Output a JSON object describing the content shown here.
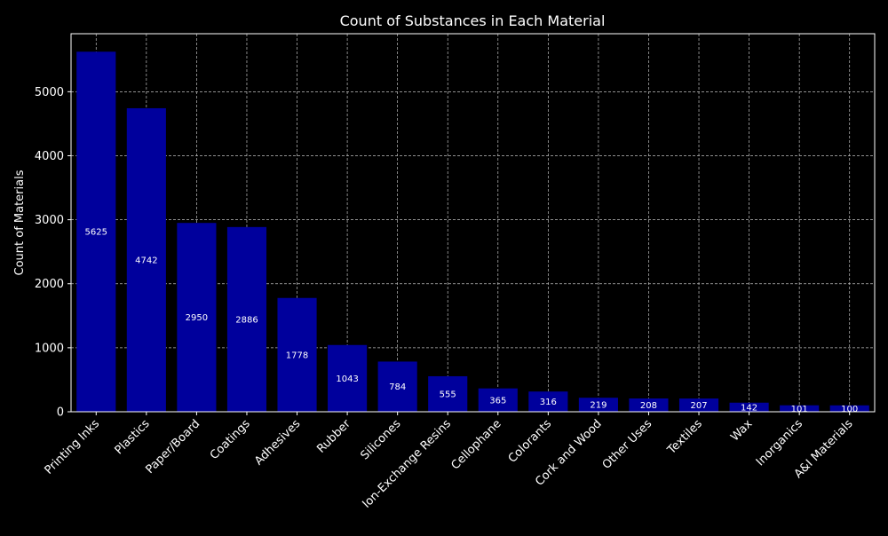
{
  "chart_data": {
    "type": "bar",
    "title": "Count of Substances in Each Material",
    "xlabel": "",
    "ylabel": "Count of Materials",
    "categories": [
      "Printing Inks",
      "Plastics",
      "Paper/Board",
      "Coatings",
      "Adhesives",
      "Rubber",
      "Silicones",
      "Ion-Exchange Resins",
      "Cellophane",
      "Colorants",
      "Cork and Wood",
      "Other Uses",
      "Textiles",
      "Wax",
      "Inorganics",
      "A&I Materials"
    ],
    "values": [
      5625,
      4742,
      2950,
      2886,
      1778,
      1043,
      784,
      555,
      365,
      316,
      219,
      208,
      207,
      142,
      101,
      100
    ],
    "data_labels": [
      "5625",
      "4742",
      "2950",
      "2886",
      "1778",
      "1043",
      "784",
      "555",
      "365",
      "316",
      "219",
      "208",
      "207",
      "142",
      "101",
      "100"
    ],
    "yticks": [
      0,
      1000,
      2000,
      3000,
      4000,
      5000
    ],
    "ytick_labels": [
      "0",
      "1000",
      "2000",
      "3000",
      "4000",
      "5000"
    ],
    "ylim": [
      0,
      5906
    ],
    "grid": true,
    "grid_style": "dashed",
    "colors": {
      "background": "#000000",
      "bar": "#00009c",
      "text": "#ffffff",
      "grid": "#bfbfbf",
      "axes": "#ffffff"
    }
  }
}
